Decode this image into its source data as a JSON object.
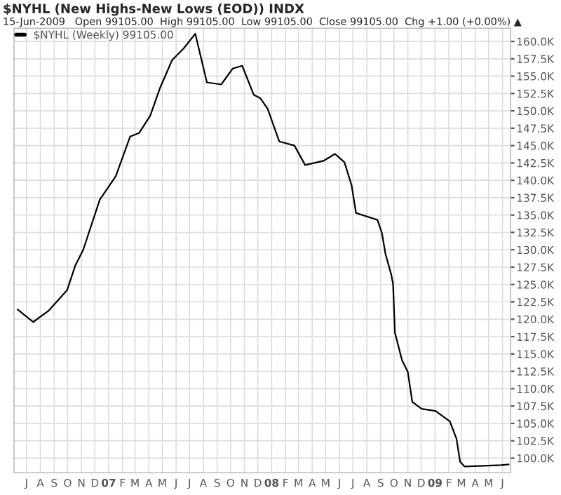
{
  "chart_data": {
    "type": "line",
    "title": "$NYHL (New Highs-New Lows (EOD)) INDX",
    "subtitle": "15-Jun-2009   Open 99105.00  High 99105.00  Low 99105.00  Close 99105.00  Chg +1.00 (+0.00%) ▲",
    "series": [
      {
        "name": "$NYHL (Weekly) 99105.00",
        "color": "#000000",
        "x": [
          "2006-06-11",
          "2006-07-16",
          "2006-08-19",
          "2006-09-30",
          "2006-10-18",
          "2006-11-05",
          "2006-12-12",
          "2007-01-17",
          "2007-02-18",
          "2007-03-10",
          "2007-04-04",
          "2007-04-26",
          "2007-05-23",
          "2007-06-18",
          "2007-07-14",
          "2007-08-09",
          "2007-09-10",
          "2007-10-06",
          "2007-10-27",
          "2007-11-22",
          "2007-12-07",
          "2007-12-23",
          "2008-01-18",
          "2008-02-21",
          "2008-03-16",
          "2008-04-26",
          "2008-05-22",
          "2008-06-12",
          "2008-06-28",
          "2008-07-08",
          "2008-08-25",
          "2008-09-04",
          "2008-09-12",
          "2008-09-25",
          "2008-09-29",
          "2008-10-03",
          "2008-10-19",
          "2008-11-01",
          "2008-11-11",
          "2008-12-02",
          "2009-01-02",
          "2009-02-03",
          "2009-02-18",
          "2009-02-26",
          "2009-03-08",
          "2009-05-29",
          "2009-06-15"
        ],
        "values": [
          121400,
          119600,
          121200,
          124200,
          127700,
          130000,
          137200,
          140600,
          146300,
          146800,
          149300,
          153300,
          157300,
          159000,
          161100,
          154100,
          153800,
          156100,
          156500,
          152300,
          151800,
          150300,
          145600,
          145000,
          142200,
          142800,
          143800,
          142600,
          139300,
          135300,
          134300,
          132400,
          129400,
          126400,
          125000,
          118100,
          114100,
          112400,
          108100,
          107100,
          106800,
          105300,
          102800,
          99500,
          98800,
          99000,
          99105
        ]
      }
    ],
    "xlim": [
      "2006-06-03",
      "2009-06-19"
    ],
    "xticks": [
      {
        "value": "2006-07-01",
        "label": "J"
      },
      {
        "value": "2006-08-01",
        "label": "A"
      },
      {
        "value": "2006-09-01",
        "label": "S"
      },
      {
        "value": "2006-10-01",
        "label": "O"
      },
      {
        "value": "2006-11-01",
        "label": "N"
      },
      {
        "value": "2006-12-01",
        "label": "D"
      },
      {
        "value": "2007-01-01",
        "label": "07"
      },
      {
        "value": "2007-02-01",
        "label": "F"
      },
      {
        "value": "2007-03-01",
        "label": "M"
      },
      {
        "value": "2007-04-01",
        "label": "A"
      },
      {
        "value": "2007-05-01",
        "label": "M"
      },
      {
        "value": "2007-06-01",
        "label": "J"
      },
      {
        "value": "2007-07-01",
        "label": "J"
      },
      {
        "value": "2007-08-01",
        "label": "A"
      },
      {
        "value": "2007-09-01",
        "label": "S"
      },
      {
        "value": "2007-10-01",
        "label": "O"
      },
      {
        "value": "2007-11-01",
        "label": "N"
      },
      {
        "value": "2007-12-01",
        "label": "D"
      },
      {
        "value": "2008-01-01",
        "label": "08"
      },
      {
        "value": "2008-02-01",
        "label": "F"
      },
      {
        "value": "2008-03-01",
        "label": "M"
      },
      {
        "value": "2008-04-01",
        "label": "A"
      },
      {
        "value": "2008-05-01",
        "label": "M"
      },
      {
        "value": "2008-06-01",
        "label": "J"
      },
      {
        "value": "2008-07-01",
        "label": "J"
      },
      {
        "value": "2008-08-01",
        "label": "A"
      },
      {
        "value": "2008-09-01",
        "label": "S"
      },
      {
        "value": "2008-10-01",
        "label": "O"
      },
      {
        "value": "2008-11-01",
        "label": "N"
      },
      {
        "value": "2008-12-01",
        "label": "D"
      },
      {
        "value": "2009-01-01",
        "label": "09"
      },
      {
        "value": "2009-02-01",
        "label": "F"
      },
      {
        "value": "2009-03-01",
        "label": "M"
      },
      {
        "value": "2009-04-01",
        "label": "A"
      },
      {
        "value": "2009-05-01",
        "label": "M"
      },
      {
        "value": "2009-06-01",
        "label": "J"
      }
    ],
    "ylim": [
      97900,
      161900
    ],
    "yticks": [
      {
        "value": 100000,
        "label": "100.0K"
      },
      {
        "value": 102500,
        "label": "102.5K"
      },
      {
        "value": 105000,
        "label": "105.0K"
      },
      {
        "value": 107500,
        "label": "107.5K"
      },
      {
        "value": 110000,
        "label": "110.0K"
      },
      {
        "value": 112500,
        "label": "112.5K"
      },
      {
        "value": 115000,
        "label": "115.0K"
      },
      {
        "value": 117500,
        "label": "117.5K"
      },
      {
        "value": 120000,
        "label": "120.0K"
      },
      {
        "value": 122500,
        "label": "122.5K"
      },
      {
        "value": 125000,
        "label": "125.0K"
      },
      {
        "value": 127500,
        "label": "127.5K"
      },
      {
        "value": 130000,
        "label": "130.0K"
      },
      {
        "value": 132500,
        "label": "132.5K"
      },
      {
        "value": 135000,
        "label": "135.0K"
      },
      {
        "value": 137500,
        "label": "137.5K"
      },
      {
        "value": 140000,
        "label": "140.0K"
      },
      {
        "value": 142500,
        "label": "142.5K"
      },
      {
        "value": 145000,
        "label": "145.0K"
      },
      {
        "value": 147500,
        "label": "147.5K"
      },
      {
        "value": 150000,
        "label": "150.0K"
      },
      {
        "value": 152500,
        "label": "152.5K"
      },
      {
        "value": 155000,
        "label": "155.0K"
      },
      {
        "value": 157500,
        "label": "157.5K"
      },
      {
        "value": 160000,
        "label": "160.0K"
      }
    ],
    "grid": true,
    "legend": "top left",
    "marker": "none",
    "line_style": "solid"
  }
}
